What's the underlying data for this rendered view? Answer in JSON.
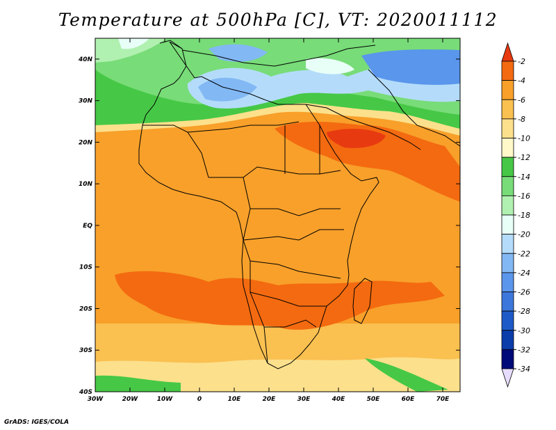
{
  "title": "Temperature at 500hPa [C], VT: 2020011112",
  "credit": "GrADS: IGES/COLA",
  "map": {
    "lat_labels": [
      "40N",
      "30N",
      "20N",
      "10N",
      "EQ",
      "10S",
      "20S",
      "30S",
      "40S"
    ],
    "lon_labels": [
      "30W",
      "20W",
      "10W",
      "0",
      "10E",
      "20E",
      "30E",
      "40E",
      "50E",
      "60E",
      "70E"
    ],
    "lon_range": [
      -30,
      75
    ],
    "lat_range": [
      -40,
      45
    ]
  },
  "colorbar": {
    "labels": [
      "-2",
      "-4",
      "-6",
      "-8",
      "-10",
      "-12",
      "-14",
      "-16",
      "-18",
      "-20",
      "-22",
      "-24",
      "-26",
      "-28",
      "-30",
      "-32",
      "-34"
    ],
    "colors": [
      "#e83a10",
      "#f46a10",
      "#f8a02a",
      "#fac050",
      "#fce08c",
      "#fff8c8",
      "#46c846",
      "#78dc78",
      "#b0f0b0",
      "#e8fff8",
      "#b4dcfa",
      "#82b8f4",
      "#5a96ec",
      "#3c78dc",
      "#1e5ac8",
      "#0a3caa",
      "#000a78",
      "#e6dcff"
    ]
  }
}
